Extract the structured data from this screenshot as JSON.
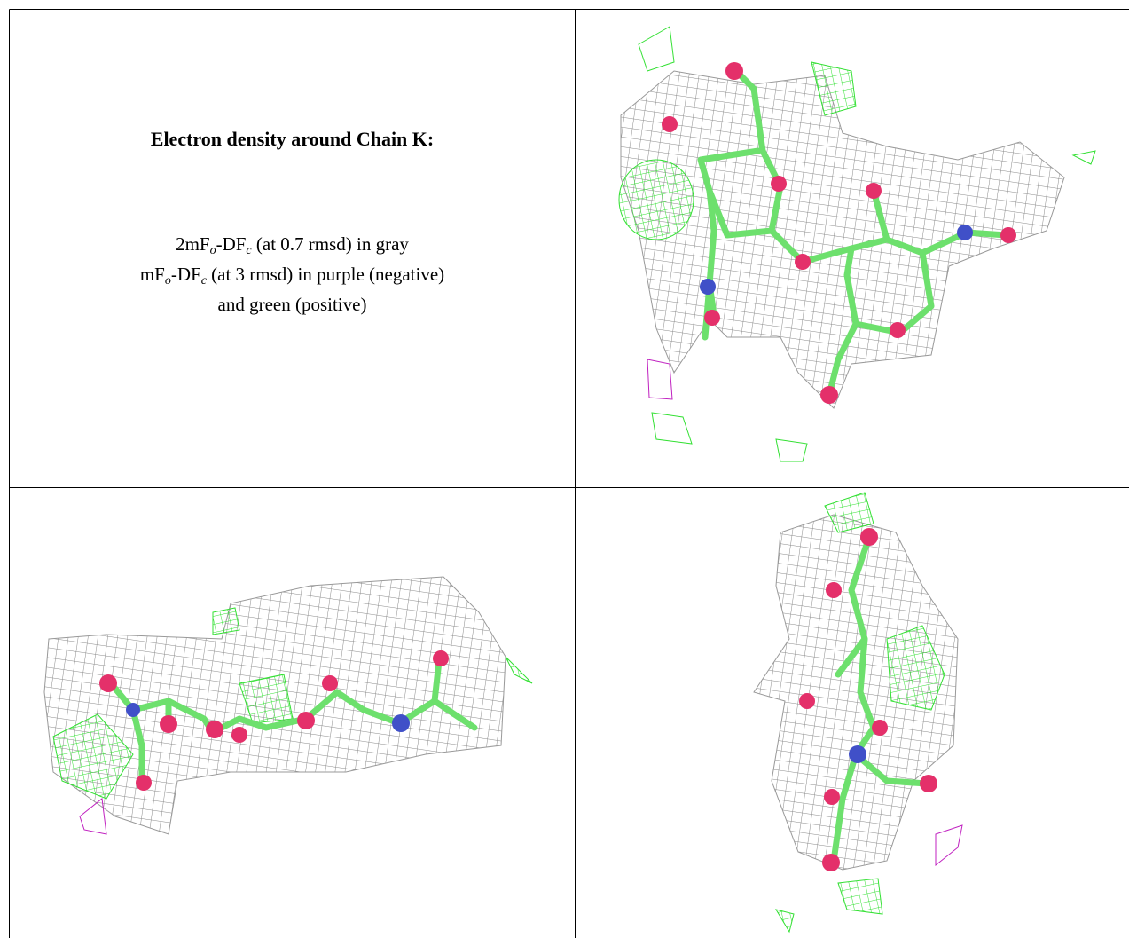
{
  "caption": {
    "title": "Electron density around Chain K:",
    "lines": [
      [
        "2mF",
        "o",
        "-DF",
        "c",
        " (at 0.7 rmsd) in gray"
      ],
      [
        "mF",
        "o",
        "-DF",
        "c",
        " (at 3 rmsd) in purple (negative)"
      ],
      [
        "and green (positive)"
      ]
    ]
  }
}
